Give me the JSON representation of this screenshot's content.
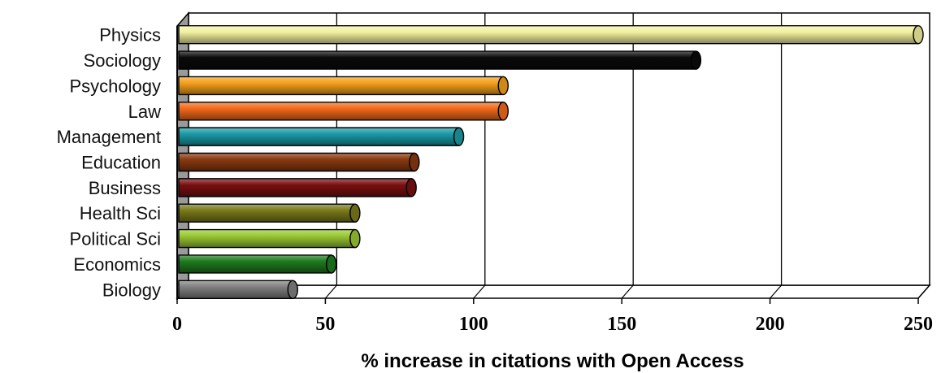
{
  "chart_data": {
    "type": "bar",
    "orientation": "horizontal",
    "style": "3d-cylinder",
    "categories": [
      "Physics",
      "Sociology",
      "Psychology",
      "Law",
      "Management",
      "Education",
      "Business",
      "Health Sci",
      "Political Sci",
      "Economics",
      "Biology"
    ],
    "values": [
      250,
      175,
      110,
      110,
      95,
      80,
      79,
      60,
      60,
      52,
      39
    ],
    "colors": [
      "#f2f2a0",
      "#0a0a0a",
      "#f5a01a",
      "#f26a1a",
      "#1a9aa6",
      "#8a3a10",
      "#7a0f10",
      "#7a7a1a",
      "#9ac832",
      "#1e7a1e",
      "#808080"
    ],
    "xlabel": "% increase in citations with Open Access",
    "ylabel": "",
    "xlim": [
      0,
      250
    ],
    "xticks": [
      0,
      50,
      100,
      150,
      200,
      250
    ],
    "grid": "vertical"
  }
}
